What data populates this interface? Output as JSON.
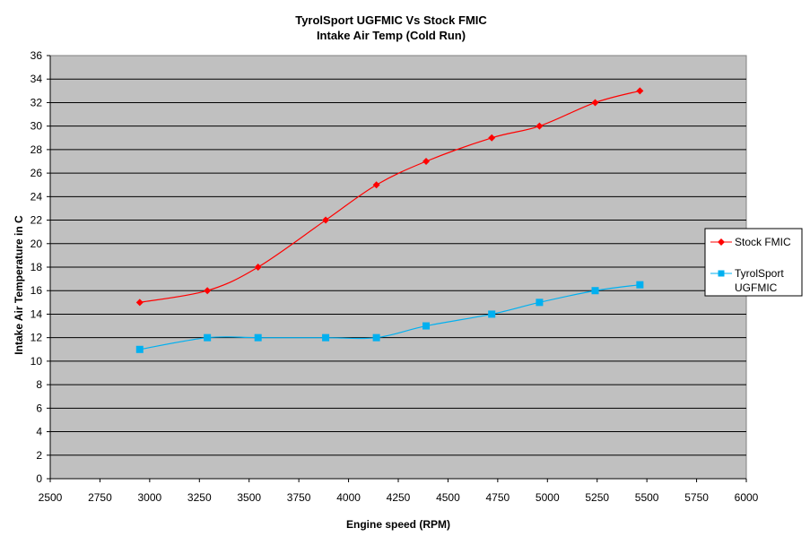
{
  "chart_data": {
    "type": "line",
    "title": "TyrolSport UGFMIC Vs Stock FMIC",
    "subtitle": "Intake Air Temp (Cold Run)",
    "xlabel": "Engine speed (RPM)",
    "ylabel": "Intake Air Temperature in C",
    "xlim": [
      2500,
      6000
    ],
    "ylim": [
      0,
      36
    ],
    "x_ticks": [
      2500,
      2750,
      3000,
      3250,
      3500,
      3750,
      4000,
      4250,
      4500,
      4750,
      5000,
      5250,
      5500,
      5750,
      6000
    ],
    "y_ticks": [
      0,
      2,
      4,
      6,
      8,
      10,
      12,
      14,
      16,
      18,
      20,
      22,
      24,
      26,
      28,
      30,
      32,
      34,
      36
    ],
    "grid": "horizontal",
    "legend_position": "right",
    "plot_background": "#c0c0c0",
    "series": [
      {
        "name": "Stock FMIC",
        "color": "#ff0000",
        "marker": "diamond",
        "points": [
          [
            2950,
            15
          ],
          [
            3290,
            16
          ],
          [
            3545,
            18
          ],
          [
            3885,
            22
          ],
          [
            4140,
            25
          ],
          [
            4390,
            27
          ],
          [
            4720,
            29
          ],
          [
            4960,
            30
          ],
          [
            5240,
            32
          ],
          [
            5465,
            33
          ]
        ]
      },
      {
        "name": "TyrolSport UGFMIC",
        "color": "#00b0f0",
        "marker": "square",
        "points": [
          [
            2950,
            11
          ],
          [
            3290,
            12
          ],
          [
            3545,
            12
          ],
          [
            3885,
            12
          ],
          [
            4140,
            12
          ],
          [
            4390,
            13
          ],
          [
            4720,
            14
          ],
          [
            4960,
            15
          ],
          [
            5240,
            16
          ],
          [
            5465,
            16.5
          ]
        ]
      }
    ]
  }
}
